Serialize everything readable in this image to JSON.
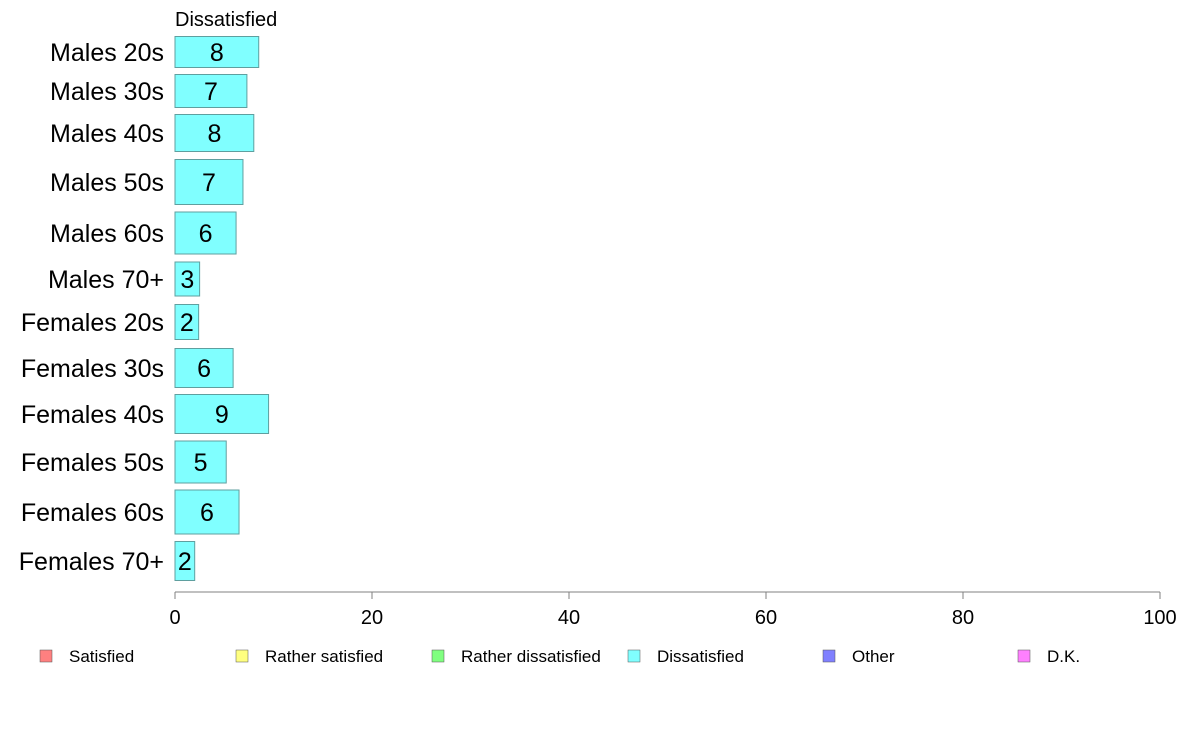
{
  "chart_data": {
    "type": "bar",
    "orientation": "horizontal",
    "title": "",
    "xlabel": "",
    "ylabel": "",
    "panel_title": "Dissatisfied",
    "xlim": [
      0,
      100
    ],
    "xticks": [
      0,
      20,
      40,
      60,
      80,
      100
    ],
    "grid": false,
    "legend_position": "bottom",
    "categories": [
      "Males 20s",
      "Males 30s",
      "Males 40s",
      "Males 50s",
      "Males 60s",
      "Males 70+",
      "Females 20s",
      "Females 30s",
      "Females 40s",
      "Females 50s",
      "Females 60s",
      "Females 70+"
    ],
    "series": [
      {
        "name": "Dissatisfied",
        "values": [
          8.5,
          7.3,
          8.0,
          6.9,
          6.2,
          2.5,
          2.4,
          5.9,
          9.5,
          5.2,
          6.5,
          2.0
        ],
        "labels": [
          "8",
          "7",
          "8",
          "7",
          "6",
          "3",
          "2",
          "6",
          "9",
          "5",
          "6",
          "2"
        ],
        "color": "#80ffff"
      }
    ],
    "legend": [
      {
        "name": "Satisfied",
        "color": "#ff8080"
      },
      {
        "name": "Rather satisfied",
        "color": "#ffff80"
      },
      {
        "name": "Rather dissatisfied",
        "color": "#80ff80"
      },
      {
        "name": "Dissatisfied",
        "color": "#80ffff"
      },
      {
        "name": "Other",
        "color": "#8080ff"
      },
      {
        "name": "D.K.",
        "color": "#ff80ff"
      }
    ],
    "bar_border_color": "#5f9f9f",
    "axis_color": "#808080"
  }
}
